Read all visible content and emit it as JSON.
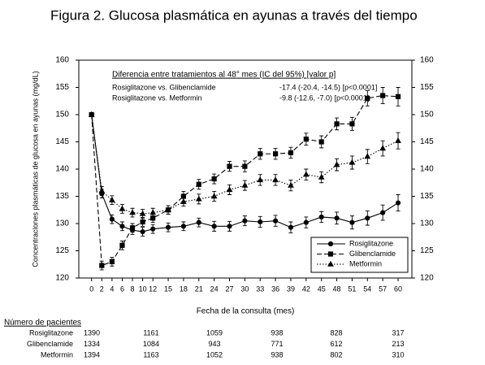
{
  "chart_data": {
    "type": "line",
    "title": "Figura 2. Glucosa plasmática en ayunas a través del tiempo",
    "x_label": "Fecha de la consulta (mes)",
    "y_label": "Concentraciones plasmáticas de glucosa en ayunas (mg/dL)",
    "x": [
      0,
      2,
      4,
      6,
      8,
      10,
      12,
      15,
      18,
      21,
      24,
      27,
      30,
      33,
      36,
      39,
      42,
      45,
      48,
      51,
      54,
      57,
      60
    ],
    "xlim": [
      -2.5,
      62.7
    ],
    "xticks": [
      0,
      2,
      4,
      6,
      8,
      10,
      12,
      15,
      18,
      21,
      24,
      27,
      30,
      33,
      36,
      39,
      42,
      45,
      48,
      51,
      54,
      57,
      60
    ],
    "ylim": [
      120,
      160
    ],
    "yticks": [
      120,
      125,
      130,
      135,
      140,
      145,
      150,
      155,
      160
    ],
    "y2lim": [
      120,
      160
    ],
    "y2ticks": [
      120,
      125,
      130,
      135,
      140,
      145,
      150,
      155,
      160
    ],
    "legend_position": "lower right",
    "series": [
      {
        "name": "Rosiglitazone",
        "color": "#000000",
        "line_style": "solid",
        "marker": "circle",
        "values": [
          150,
          135.5,
          130.8,
          129.5,
          128.8,
          128.5,
          129,
          129.3,
          129.5,
          130.2,
          129.5,
          129.5,
          130.5,
          130.3,
          130.5,
          129.3,
          130.2,
          131.2,
          131,
          130.2,
          131,
          132,
          133.8
        ],
        "errors": [
          0,
          0.8,
          0.8,
          0.8,
          0.8,
          0.8,
          0.8,
          0.8,
          0.8,
          0.8,
          0.9,
          0.9,
          0.9,
          1,
          1,
          1,
          1,
          1,
          1.1,
          1.2,
          1.3,
          1.4,
          1.5
        ]
      },
      {
        "name": "Glibenclamide",
        "color": "#000000",
        "line_style": "dashed",
        "marker": "square",
        "values": [
          150,
          122.3,
          123,
          126,
          129.2,
          130.3,
          131,
          132.5,
          135,
          137.2,
          138.2,
          140.5,
          140.5,
          142.8,
          142.8,
          143,
          145.5,
          145,
          148.3,
          148.3,
          153,
          153.5,
          153.3
        ],
        "errors": [
          0,
          0.8,
          0.8,
          0.8,
          0.8,
          0.8,
          0.8,
          0.8,
          0.9,
          0.9,
          0.9,
          0.9,
          1,
          1,
          1,
          1,
          1.1,
          1.1,
          1.1,
          1.2,
          1.4,
          1.5,
          1.7
        ]
      },
      {
        "name": "Metformin",
        "color": "#000000",
        "line_style": "dotted",
        "marker": "triangle",
        "values": [
          150,
          136,
          134.3,
          132.7,
          132,
          131.8,
          132,
          132.5,
          134,
          134.5,
          135,
          136.2,
          137,
          138,
          138,
          137,
          139,
          138.5,
          140.8,
          141.2,
          142.3,
          143.8,
          145.2
        ],
        "errors": [
          0,
          0.8,
          0.8,
          0.8,
          0.8,
          0.8,
          0.8,
          0.8,
          0.8,
          0.9,
          0.9,
          0.9,
          0.9,
          1,
          1,
          1,
          1,
          1,
          1.1,
          1.2,
          1.3,
          1.4,
          1.5
        ]
      }
    ],
    "annotation": {
      "title": "Diferencia entre tratamientos al 48° mes (IC del 95%) [valor p]",
      "rows": [
        {
          "label": "Rosiglitazone vs. Glibenclamide",
          "text": "-17.4 (-20.4, -14.5) [p<0.0001]"
        },
        {
          "label": "Rosiglitazone vs. Metformin",
          "text": "-9.8 (-12.6, -7.0) [p<0.0001]"
        }
      ]
    },
    "patients": {
      "title": "Número de pacientes",
      "rows": [
        {
          "name": "Rosiglitazone",
          "counts": [
            1390,
            1161,
            1059,
            938,
            828,
            317
          ]
        },
        {
          "name": "Glibenclamide",
          "counts": [
            1334,
            1084,
            943,
            771,
            612,
            213
          ]
        },
        {
          "name": "Metformin",
          "counts": [
            1394,
            1163,
            1052,
            938,
            802,
            310
          ]
        }
      ]
    }
  }
}
